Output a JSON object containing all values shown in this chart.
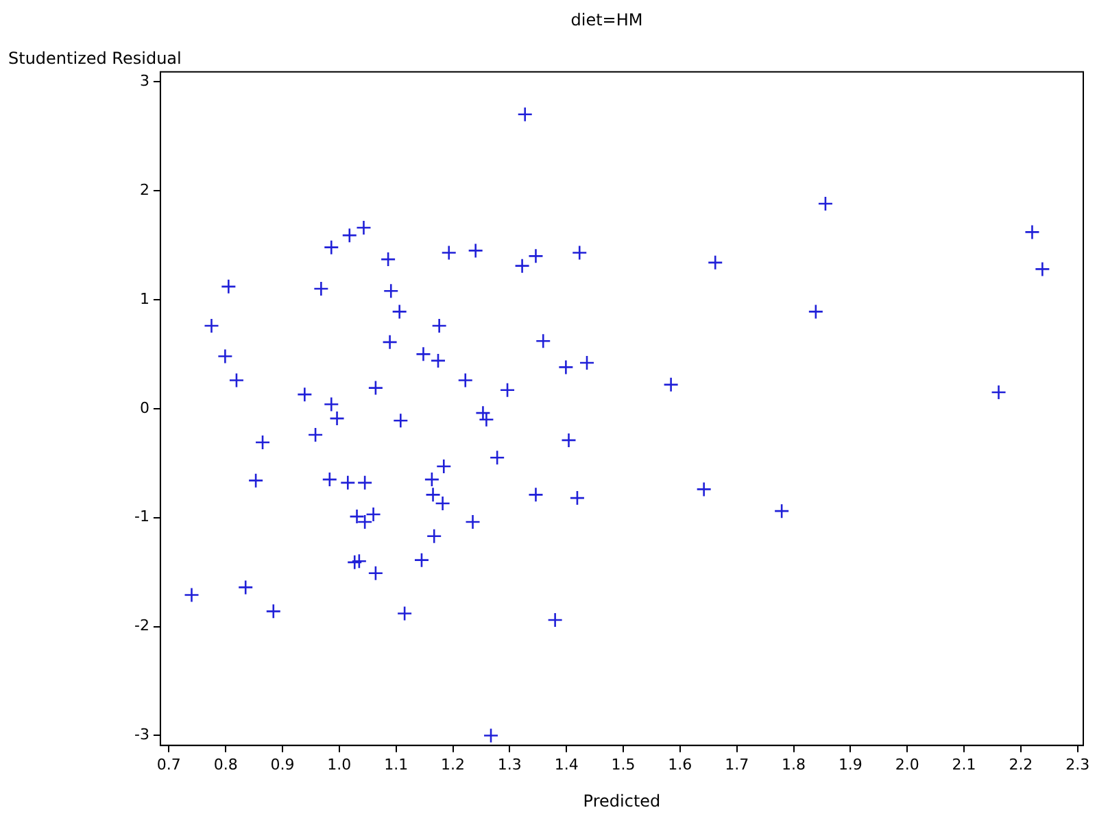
{
  "chart_data": {
    "type": "scatter",
    "title": "diet=HM",
    "xlabel": "Predicted",
    "ylabel": "Studentized Residual",
    "marker": "cross",
    "grid": false,
    "legend": false,
    "xlim": [
      0.685,
      2.31
    ],
    "ylim": [
      -3.09,
      3.09
    ],
    "xticks": [
      0.7,
      0.8,
      0.9,
      {
        "value": 1,
        "label": "1.0"
      },
      1.1,
      1.2,
      1.3,
      1.4,
      1.5,
      1.6,
      1.7,
      1.8,
      1.9,
      {
        "value": 2,
        "label": "2.0"
      },
      2.1,
      2.2,
      2.3
    ],
    "yticks": [
      -3,
      -2,
      -1,
      0,
      1,
      2,
      3
    ],
    "series": [
      {
        "color": "#2020d8",
        "x": [
          1.856,
          2.22,
          2.238,
          1.839,
          2.161,
          1.779,
          1.327,
          1.24,
          1.322,
          1.346,
          1.423,
          1.662,
          1.359,
          1.399,
          1.436,
          1.296,
          1.584,
          1.222,
          1.253,
          1.259,
          1.404,
          1.278,
          1.346,
          1.419,
          1.642,
          1.235,
          1.38,
          1.267,
          1.043,
          1.018,
          0.986,
          1.086,
          1.193,
          0.805,
          0.968,
          1.091,
          1.106,
          0.775,
          1.176,
          1.089,
          0.799,
          1.148,
          1.174,
          0.819,
          0.939,
          1.064,
          0.986,
          0.996,
          1.108,
          0.958,
          0.865,
          1.184,
          0.853,
          0.983,
          1.015,
          1.045,
          1.163,
          1.165,
          1.182,
          1.031,
          1.045,
          1.06,
          1.167,
          1.145,
          1.027,
          1.035,
          1.064,
          0.74,
          0.835,
          0.884,
          1.115
        ],
        "values": [
          1.88,
          1.62,
          1.28,
          0.89,
          0.15,
          -0.94,
          2.7,
          1.45,
          1.31,
          1.4,
          1.43,
          1.34,
          0.62,
          0.38,
          0.42,
          0.17,
          0.22,
          0.26,
          -0.04,
          -0.1,
          -0.29,
          -0.45,
          -0.79,
          -0.82,
          -0.74,
          -1.04,
          -1.94,
          -3.0,
          1.66,
          1.59,
          1.48,
          1.37,
          1.43,
          1.12,
          1.1,
          1.08,
          0.89,
          0.76,
          0.76,
          0.61,
          0.48,
          0.5,
          0.44,
          0.26,
          0.13,
          0.19,
          0.04,
          -0.09,
          -0.11,
          -0.24,
          -0.31,
          -0.53,
          -0.66,
          -0.65,
          -0.68,
          -0.68,
          -0.65,
          -0.79,
          -0.87,
          -0.99,
          -1.04,
          -0.97,
          -1.17,
          -1.39,
          -1.41,
          -1.4,
          -1.51,
          -1.71,
          -1.64,
          -1.86,
          -1.88
        ]
      }
    ]
  }
}
